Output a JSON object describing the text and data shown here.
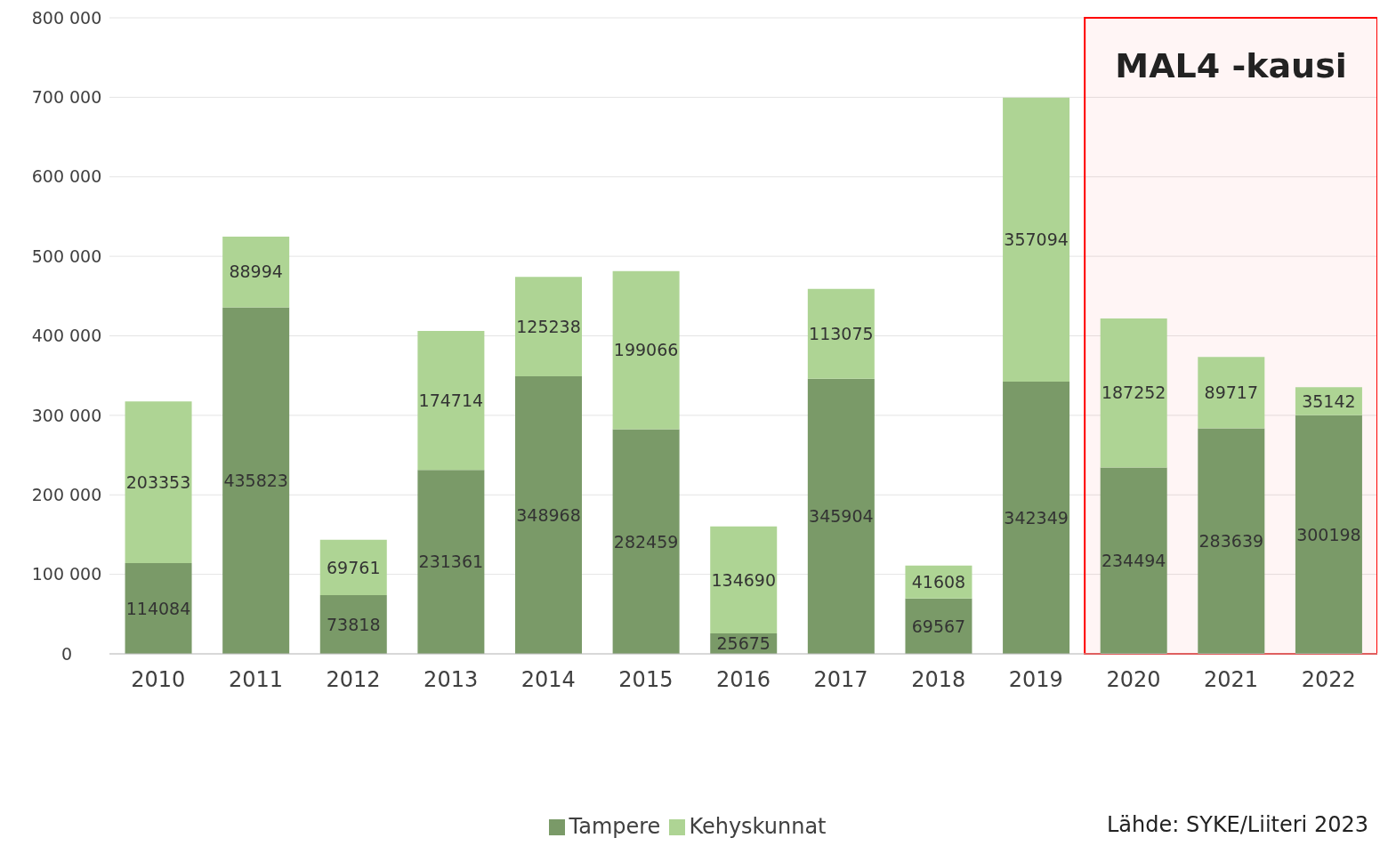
{
  "chart_data": {
    "type": "bar",
    "stacked": true,
    "categories": [
      "2010",
      "2011",
      "2012",
      "2013",
      "2014",
      "2015",
      "2016",
      "2017",
      "2018",
      "2019",
      "2020",
      "2021",
      "2022"
    ],
    "series": [
      {
        "name": "Tampere",
        "color": "#7a9a68",
        "values": [
          114084,
          435823,
          73818,
          231361,
          348968,
          282459,
          25675,
          345904,
          69567,
          342349,
          234494,
          283639,
          300198
        ]
      },
      {
        "name": "Kehyskunnat",
        "color": "#aed494",
        "values": [
          203353,
          88994,
          69761,
          174714,
          125238,
          199066,
          134690,
          113075,
          41608,
          357094,
          187252,
          89717,
          35142
        ]
      }
    ],
    "ylim": [
      0,
      800000
    ],
    "yticks": [
      {
        "value": 0,
        "label": "0"
      },
      {
        "value": 100000,
        "label": "100 000"
      },
      {
        "value": 200000,
        "label": "200 000"
      },
      {
        "value": 300000,
        "label": "300 000"
      },
      {
        "value": 400000,
        "label": "400 000"
      },
      {
        "value": 500000,
        "label": "500 000"
      },
      {
        "value": 600000,
        "label": "600 000"
      },
      {
        "value": 700000,
        "label": "700 000"
      },
      {
        "value": 800000,
        "label": "800 000"
      }
    ],
    "grid": "y",
    "legend": "bottom",
    "data_labels": true,
    "bands": [
      {
        "axis": "x",
        "from": "2020",
        "to": "2022",
        "label": "MAL4 -kausi",
        "color": "#ff0000"
      }
    ],
    "annotations": [
      "Lähde: SYKE/Liiteri 2023"
    ]
  }
}
